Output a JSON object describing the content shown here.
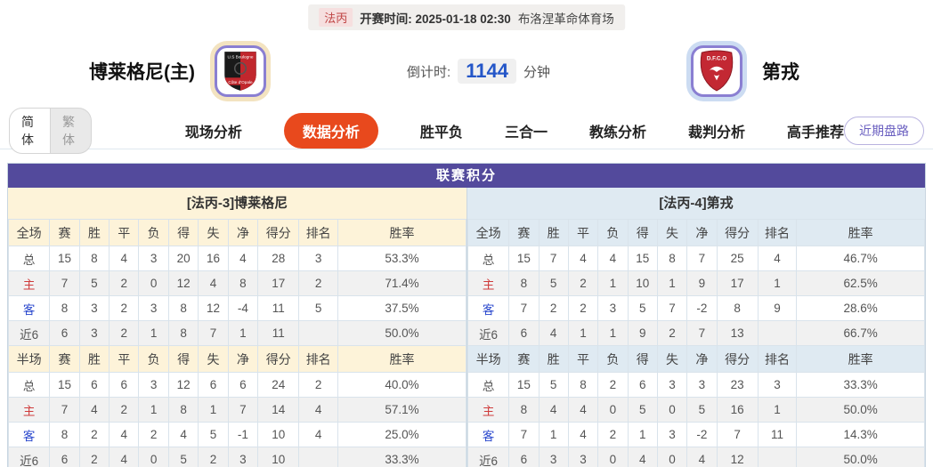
{
  "match_bar": {
    "league": "法丙",
    "kickoff_label": "开赛时间:",
    "kickoff_time": "2025-01-18 02:30",
    "venue": "布洛涅革命体育场"
  },
  "header": {
    "home_name": "博莱格尼(主)",
    "away_name": "第戎",
    "countdown_label": "倒计时:",
    "countdown_value": "1144",
    "countdown_unit": "分钟",
    "home_logo_line1": "U.S Boulogne",
    "home_logo_line2": "Côte d'Opale",
    "away_logo_text": "D.F.C.O"
  },
  "nav": {
    "lang_options": [
      "简体",
      "繁体"
    ],
    "active_lang": "简体",
    "tabs": [
      "现场分析",
      "数据分析",
      "胜平负",
      "三合一",
      "教练分析",
      "裁判分析",
      "高手推荐"
    ],
    "active_tab": "数据分析",
    "recent_trend_button": "近期盘路"
  },
  "colors": {
    "accent_purple": "#534a9c",
    "active_tab_orange": "#e8491d",
    "home_header_bg": "#fdf3d9",
    "away_header_bg": "#dfeaf2",
    "home_label_red": "#cf3b3b",
    "away_label_blue": "#2947cd",
    "countdown_blue": "#2456c8"
  },
  "league_table": {
    "title": "联赛积分",
    "columns_full": [
      "全场",
      "赛",
      "胜",
      "平",
      "负",
      "得",
      "失",
      "净",
      "得分",
      "排名",
      "胜率"
    ],
    "columns_half": [
      "半场",
      "赛",
      "胜",
      "平",
      "负",
      "得",
      "失",
      "净",
      "得分",
      "排名",
      "胜率"
    ],
    "left": {
      "team_header": "[法丙-3]博莱格尼",
      "full_rows": [
        {
          "label": "总",
          "type": "total",
          "values": [
            "15",
            "8",
            "4",
            "3",
            "20",
            "16",
            "4",
            "28",
            "3",
            "53.3%"
          ]
        },
        {
          "label": "主",
          "type": "home",
          "values": [
            "7",
            "5",
            "2",
            "0",
            "12",
            "4",
            "8",
            "17",
            "2",
            "71.4%"
          ]
        },
        {
          "label": "客",
          "type": "away",
          "values": [
            "8",
            "3",
            "2",
            "3",
            "8",
            "12",
            "-4",
            "11",
            "5",
            "37.5%"
          ]
        },
        {
          "label": "近6",
          "type": "recent",
          "values": [
            "6",
            "3",
            "2",
            "1",
            "8",
            "7",
            "1",
            "11",
            "",
            "50.0%"
          ]
        }
      ],
      "half_rows": [
        {
          "label": "总",
          "type": "total",
          "values": [
            "15",
            "6",
            "6",
            "3",
            "12",
            "6",
            "6",
            "24",
            "2",
            "40.0%"
          ]
        },
        {
          "label": "主",
          "type": "home",
          "values": [
            "7",
            "4",
            "2",
            "1",
            "8",
            "1",
            "7",
            "14",
            "4",
            "57.1%"
          ]
        },
        {
          "label": "客",
          "type": "away",
          "values": [
            "8",
            "2",
            "4",
            "2",
            "4",
            "5",
            "-1",
            "10",
            "4",
            "25.0%"
          ]
        },
        {
          "label": "近6",
          "type": "recent",
          "values": [
            "6",
            "2",
            "4",
            "0",
            "5",
            "2",
            "3",
            "10",
            "",
            "33.3%"
          ]
        }
      ]
    },
    "right": {
      "team_header": "[法丙-4]第戎",
      "full_rows": [
        {
          "label": "总",
          "type": "total",
          "values": [
            "15",
            "7",
            "4",
            "4",
            "15",
            "8",
            "7",
            "25",
            "4",
            "46.7%"
          ]
        },
        {
          "label": "主",
          "type": "home",
          "values": [
            "8",
            "5",
            "2",
            "1",
            "10",
            "1",
            "9",
            "17",
            "1",
            "62.5%"
          ]
        },
        {
          "label": "客",
          "type": "away",
          "values": [
            "7",
            "2",
            "2",
            "3",
            "5",
            "7",
            "-2",
            "8",
            "9",
            "28.6%"
          ]
        },
        {
          "label": "近6",
          "type": "recent",
          "values": [
            "6",
            "4",
            "1",
            "1",
            "9",
            "2",
            "7",
            "13",
            "",
            "66.7%"
          ]
        }
      ],
      "half_rows": [
        {
          "label": "总",
          "type": "total",
          "values": [
            "15",
            "5",
            "8",
            "2",
            "6",
            "3",
            "3",
            "23",
            "3",
            "33.3%"
          ]
        },
        {
          "label": "主",
          "type": "home",
          "values": [
            "8",
            "4",
            "4",
            "0",
            "5",
            "0",
            "5",
            "16",
            "1",
            "50.0%"
          ]
        },
        {
          "label": "客",
          "type": "away",
          "values": [
            "7",
            "1",
            "4",
            "2",
            "1",
            "3",
            "-2",
            "7",
            "11",
            "14.3%"
          ]
        },
        {
          "label": "近6",
          "type": "recent",
          "values": [
            "6",
            "3",
            "3",
            "0",
            "4",
            "0",
            "4",
            "12",
            "",
            "50.0%"
          ]
        }
      ]
    }
  }
}
